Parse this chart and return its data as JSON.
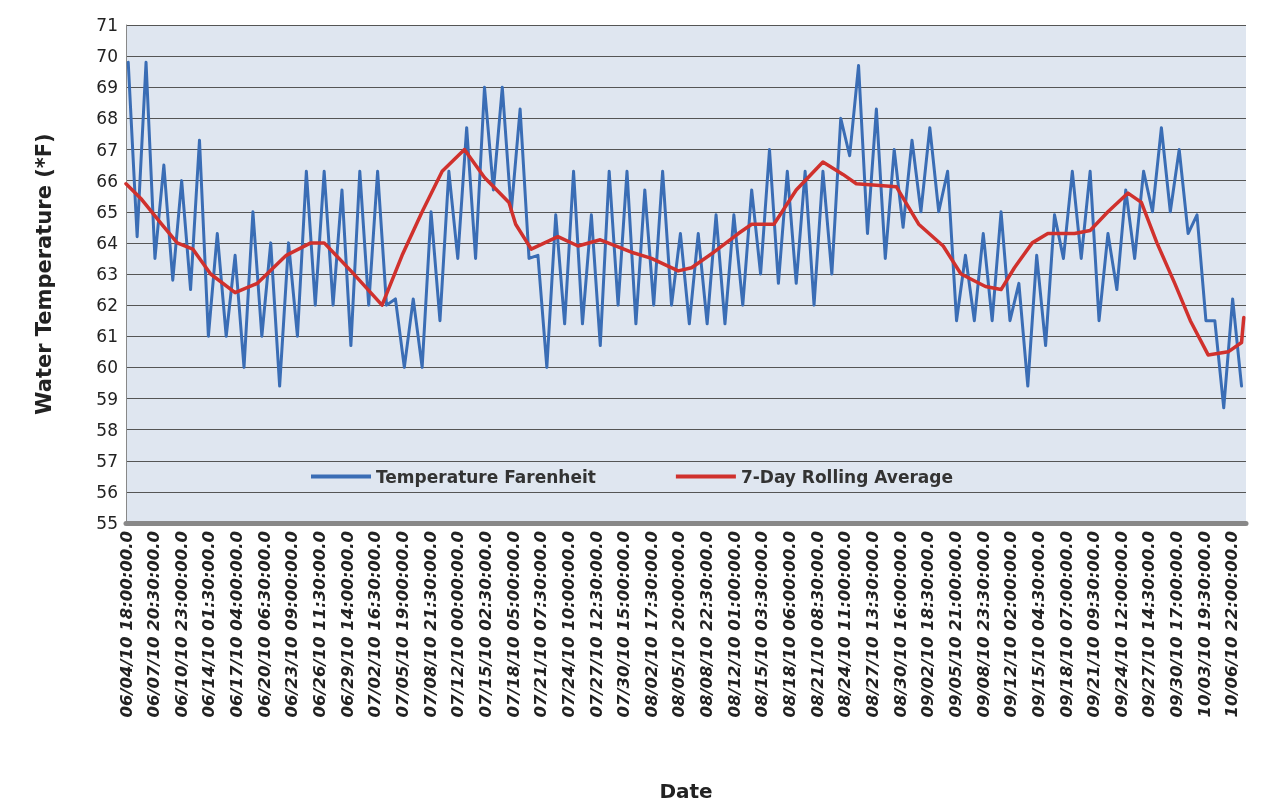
{
  "chart_data": {
    "type": "line",
    "xlabel": "Date",
    "ylabel": "Water Temperature (*F)",
    "xlim": [
      "--06-04T18:00",
      "--10-08T12:00"
    ],
    "xticks": [
      {
        "value": "--06-04T18:00",
        "label": "06/04/10 18:00:00.0"
      },
      {
        "value": "--06-07T20:30",
        "label": "06/07/10 20:30:00.0"
      },
      {
        "value": "--06-10T23:00",
        "label": "06/10/10 23:00:00.0"
      },
      {
        "value": "--06-14T01:30",
        "label": "06/14/10 01:30:00.0"
      },
      {
        "value": "--06-17T04:00",
        "label": "06/17/10 04:00:00.0"
      },
      {
        "value": "--06-20T06:30",
        "label": "06/20/10 06:30:00.0"
      },
      {
        "value": "--06-23T09:00",
        "label": "06/23/10 09:00:00.0"
      },
      {
        "value": "--06-26T11:30",
        "label": "06/26/10 11:30:00.0"
      },
      {
        "value": "--06-29T14:00",
        "label": "06/29/10 14:00:00.0"
      },
      {
        "value": "--07-02T16:30",
        "label": "07/02/10 16:30:00.0"
      },
      {
        "value": "--07-05T19:00",
        "label": "07/05/10 19:00:00.0"
      },
      {
        "value": "--07-08T21:30",
        "label": "07/08/10 21:30:00.0"
      },
      {
        "value": "--07-12T00:00",
        "label": "07/12/10 00:00:00.0"
      },
      {
        "value": "--07-15T02:30",
        "label": "07/15/10 02:30:00.0"
      },
      {
        "value": "--07-18T05:00",
        "label": "07/18/10 05:00:00.0"
      },
      {
        "value": "--07-21T07:30",
        "label": "07/21/10 07:30:00.0"
      },
      {
        "value": "--07-24T10:00",
        "label": "07/24/10 10:00:00.0"
      },
      {
        "value": "--07-27T12:30",
        "label": "07/27/10 12:30:00.0"
      },
      {
        "value": "--07-30T15:00",
        "label": "07/30/10 15:00:00.0"
      },
      {
        "value": "--08-02T17:30",
        "label": "08/02/10 17:30:00.0"
      },
      {
        "value": "--08-05T20:00",
        "label": "08/05/10 20:00:00.0"
      },
      {
        "value": "--08-08T22:30",
        "label": "08/08/10 22:30:00.0"
      },
      {
        "value": "--08-12T01:00",
        "label": "08/12/10 01:00:00.0"
      },
      {
        "value": "--08-15T03:30",
        "label": "08/15/10 03:30:00.0"
      },
      {
        "value": "--08-18T06:00",
        "label": "08/18/10 06:00:00.0"
      },
      {
        "value": "--08-21T08:30",
        "label": "08/21/10 08:30:00.0"
      },
      {
        "value": "--08-24T11:00",
        "label": "08/24/10 11:00:00.0"
      },
      {
        "value": "--08-27T13:30",
        "label": "08/27/10 13:30:00.0"
      },
      {
        "value": "--08-30T16:00",
        "label": "08/30/10 16:00:00.0"
      },
      {
        "value": "--09-02T18:30",
        "label": "09/02/10 18:30:00.0"
      },
      {
        "value": "--09-05T21:00",
        "label": "09/05/10 21:00:00.0"
      },
      {
        "value": "--09-08T23:30",
        "label": "09/08/10 23:30:00.0"
      },
      {
        "value": "--09-12T02:00",
        "label": "09/12/10 02:00:00.0"
      },
      {
        "value": "--09-15T04:30",
        "label": "09/15/10 04:30:00.0"
      },
      {
        "value": "--09-18T07:00",
        "label": "09/18/10 07:00:00.0"
      },
      {
        "value": "--09-21T09:30",
        "label": "09/21/10 09:30:00.0"
      },
      {
        "value": "--09-24T12:00",
        "label": "09/24/10 12:00:00.0"
      },
      {
        "value": "--09-27T14:30",
        "label": "09/27/10 14:30:00.0"
      },
      {
        "value": "--09-30T17:00",
        "label": "09/30/10 17:00:00.0"
      },
      {
        "value": "--10-03T19:30",
        "label": "10/03/10 19:30:00.0"
      },
      {
        "value": "--10-06T22:00",
        "label": "10/06/10 22:00:00.0"
      }
    ],
    "ylim": [
      55,
      71
    ],
    "yticks": [
      55,
      56,
      57,
      58,
      59,
      60,
      61,
      62,
      63,
      64,
      65,
      66,
      67,
      68,
      69,
      70,
      71
    ],
    "grid": "y",
    "legend": "bottom",
    "marker": "none",
    "line_style": "solid",
    "series": [
      {
        "name": "Temperature Farenheit",
        "color": "#3a6db5",
        "x": [
          "--06-05",
          "--06-06",
          "--06-07",
          "--06-08",
          "--06-09",
          "--06-10",
          "--06-11",
          "--06-12",
          "--06-13",
          "--06-14",
          "--06-15",
          "--06-16",
          "--06-17",
          "--06-18",
          "--06-19",
          "--06-20",
          "--06-21",
          "--06-22",
          "--06-23",
          "--06-24",
          "--06-25",
          "--06-26",
          "--06-27",
          "--06-28",
          "--06-29",
          "--06-30",
          "--07-01",
          "--07-02",
          "--07-03",
          "--07-04",
          "--07-05",
          "--07-06",
          "--07-07",
          "--07-08",
          "--07-09",
          "--07-10",
          "--07-11",
          "--07-12",
          "--07-13",
          "--07-14",
          "--07-15",
          "--07-16",
          "--07-17",
          "--07-18",
          "--07-19",
          "--07-20",
          "--07-21",
          "--07-22",
          "--07-23",
          "--07-24",
          "--07-25",
          "--07-26",
          "--07-27",
          "--07-28",
          "--07-29",
          "--07-30",
          "--07-31",
          "--08-01",
          "--08-02",
          "--08-03",
          "--08-04",
          "--08-05",
          "--08-06",
          "--08-07",
          "--08-08",
          "--08-09",
          "--08-10",
          "--08-11",
          "--08-12",
          "--08-13",
          "--08-14",
          "--08-15",
          "--08-16",
          "--08-17",
          "--08-18",
          "--08-19",
          "--08-20",
          "--08-21",
          "--08-22",
          "--08-23",
          "--08-24",
          "--08-25",
          "--08-26",
          "--08-27",
          "--08-28",
          "--08-29",
          "--08-30",
          "--08-31",
          "--09-01",
          "--09-02",
          "--09-03",
          "--09-04",
          "--09-05",
          "--09-06",
          "--09-07",
          "--09-08",
          "--09-09",
          "--09-10",
          "--09-11",
          "--09-12",
          "--09-13",
          "--09-14",
          "--09-15",
          "--09-16",
          "--09-17",
          "--09-18",
          "--09-19",
          "--09-20",
          "--09-21",
          "--09-22",
          "--09-23",
          "--09-24",
          "--09-25",
          "--09-26",
          "--09-27",
          "--09-28",
          "--09-29",
          "--09-30",
          "--10-01",
          "--10-02",
          "--10-03",
          "--10-04",
          "--10-05",
          "--10-06",
          "--10-07",
          "--10-08"
        ],
        "values": [
          69.8,
          64.2,
          69.8,
          63.5,
          66.5,
          62.8,
          66.0,
          62.5,
          67.3,
          61.0,
          64.3,
          61.0,
          63.6,
          60.0,
          65.0,
          61.0,
          64.0,
          59.4,
          64.0,
          61.0,
          66.3,
          62.0,
          66.3,
          62.0,
          65.7,
          60.7,
          66.3,
          62.0,
          66.3,
          62.0,
          62.2,
          60.0,
          62.2,
          60.0,
          65.0,
          61.5,
          66.3,
          63.5,
          67.7,
          63.5,
          69.0,
          65.7,
          69.0,
          65.0,
          68.3,
          63.5,
          63.6,
          60.0,
          64.9,
          61.4,
          66.3,
          61.4,
          64.9,
          60.7,
          66.3,
          62.0,
          66.3,
          61.4,
          65.7,
          62.0,
          66.3,
          62.0,
          64.3,
          61.4,
          64.3,
          61.4,
          64.9,
          61.4,
          64.9,
          62.0,
          65.7,
          63.0,
          67.0,
          62.7,
          66.3,
          62.7,
          66.3,
          62.0,
          66.3,
          63.0,
          68.0,
          66.8,
          69.7,
          64.3,
          68.3,
          63.5,
          67.0,
          64.5,
          67.3,
          65.0,
          67.7,
          65.0,
          66.3,
          61.5,
          63.6,
          61.5,
          64.3,
          61.5,
          65.0,
          61.5,
          62.7,
          59.4,
          63.6,
          60.7,
          64.9,
          63.5,
          66.3,
          63.5,
          66.3,
          61.5,
          64.3,
          62.5,
          65.7,
          63.5,
          66.3,
          65.0,
          67.7,
          65.0,
          67.0,
          64.3,
          64.9,
          61.5,
          61.5,
          58.7,
          62.2,
          59.4
        ]
      },
      {
        "name": "7-Day Rolling Average",
        "color": "#d0312d",
        "x": [
          "--06-04T18:00",
          "--06-06T12:00",
          "--06-08T18:00",
          "--06-10T12:00",
          "--06-12T06:00",
          "--06-14T06:00",
          "--06-17",
          "--06-19T12:00",
          "--06-22T18:00",
          "--06-25T12:00",
          "--06-27",
          "--06-30",
          "--07-03T12:00",
          "--07-05T18:00",
          "--07-08",
          "--07-10T06:00",
          "--07-12T18:00",
          "--07-15",
          "--07-17T18:00",
          "--07-18T12:00",
          "--07-20T06:00",
          "--07-23T06:00",
          "--07-25T12:00",
          "--07-28",
          "--07-31T12:00",
          "--08-02T18:00",
          "--08-05T18:00",
          "--08-07T06:00",
          "--08-09T18:00",
          "--08-12T12:00",
          "--08-14",
          "--08-16T12:00",
          "--08-19",
          "--08-22",
          "--08-24T06:00",
          "--08-25T18:00",
          "--08-30T06:00",
          "--09-01T18:00",
          "--09-04T12:00",
          "--09-06T12:00",
          "--09-09T06:00",
          "--09-11",
          "--09-12T12:00",
          "--09-14T12:00",
          "--09-16T06:00",
          "--09-19T06:00",
          "--09-21",
          "--09-23",
          "--09-25T06:00",
          "--09-26T18:00",
          "--09-28T12:00",
          "--09-30T12:00",
          "--10-02T06:00",
          "--10-04T06:00",
          "--10-06T12:00",
          "--10-08",
          "--10-08T06:00"
        ],
        "values": [
          65.9,
          65.4,
          64.6,
          64.0,
          63.8,
          63.0,
          62.4,
          62.7,
          63.6,
          64.0,
          64.0,
          63.1,
          62.0,
          63.6,
          65.0,
          66.3,
          67.0,
          66.1,
          65.3,
          64.6,
          63.8,
          64.2,
          63.9,
          64.1,
          63.7,
          63.5,
          63.1,
          63.2,
          63.7,
          64.3,
          64.6,
          64.6,
          65.7,
          66.6,
          66.2,
          65.9,
          65.8,
          64.6,
          63.9,
          63.0,
          62.6,
          62.5,
          63.2,
          64.0,
          64.3,
          64.3,
          64.4,
          65.0,
          65.6,
          65.3,
          64.0,
          62.7,
          61.5,
          60.4,
          60.5,
          60.8,
          61.6
        ]
      }
    ]
  }
}
